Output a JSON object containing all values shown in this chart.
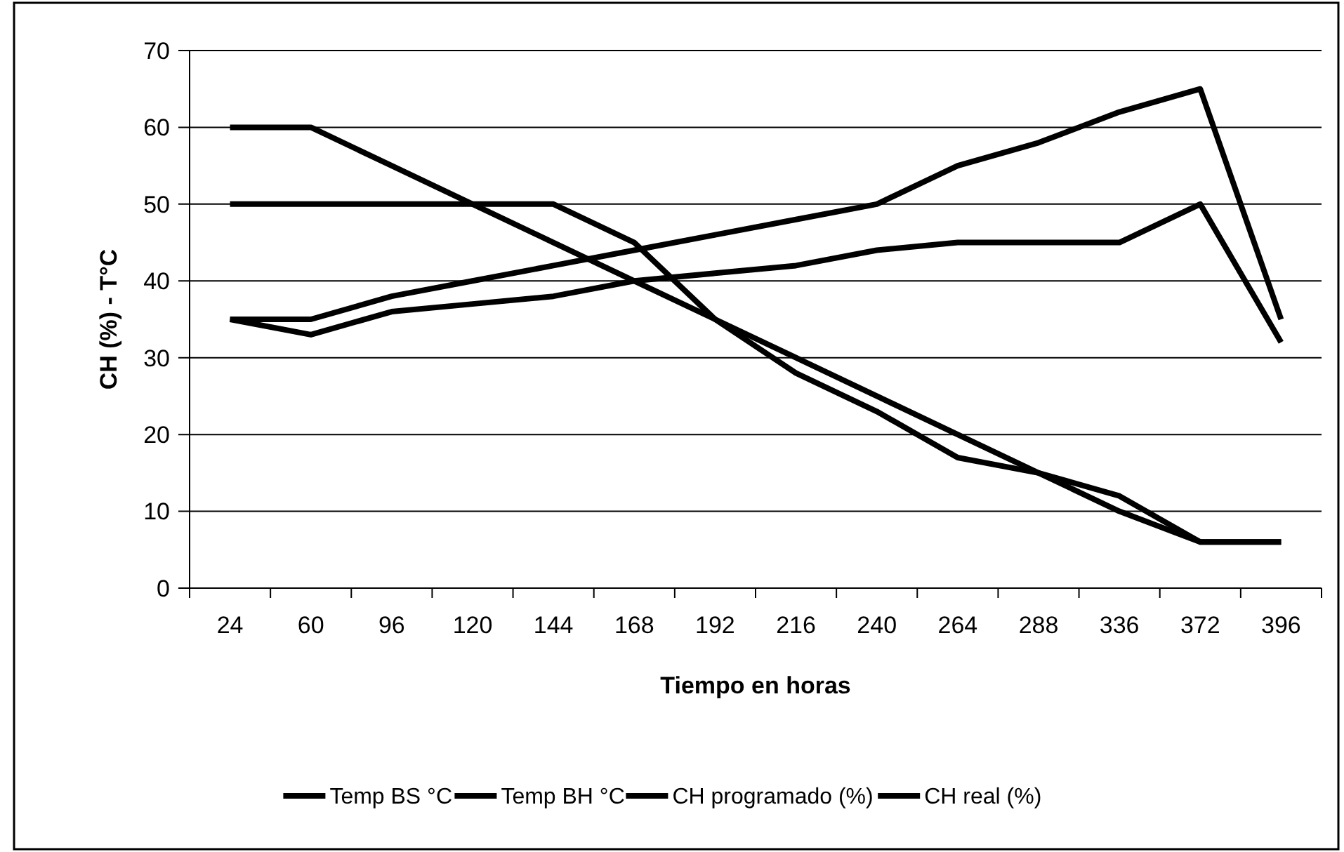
{
  "chart_data": {
    "type": "line",
    "xlabel": "Tiempo en horas",
    "ylabel": "CH (%) - T°C",
    "categories": [
      "24",
      "60",
      "96",
      "120",
      "144",
      "168",
      "192",
      "216",
      "240",
      "264",
      "288",
      "336",
      "372",
      "396"
    ],
    "series": [
      {
        "name": "Temp BS °C",
        "color": "#000000",
        "values": [
          60,
          60,
          55,
          50,
          45,
          40,
          35,
          30,
          25,
          20,
          15,
          10,
          6,
          6
        ]
      },
      {
        "name": "Temp BH °C",
        "color": "#000000",
        "values": [
          50,
          50,
          50,
          50,
          50,
          45,
          35,
          28,
          23,
          17,
          15,
          12,
          6,
          6
        ]
      },
      {
        "name": "CH programado (%)",
        "color": "#000000",
        "values": [
          35,
          35,
          38,
          40,
          42,
          44,
          46,
          48,
          50,
          55,
          58,
          62,
          65,
          35
        ]
      },
      {
        "name": "CH real (%)",
        "color": "#000000",
        "values": [
          35,
          33,
          36,
          37,
          38,
          40,
          41,
          42,
          44,
          45,
          45,
          45,
          50,
          32
        ]
      }
    ],
    "ylim": [
      0,
      70
    ],
    "yticks": [
      0,
      10,
      20,
      30,
      40,
      50,
      60,
      70
    ],
    "grid": "y",
    "legend": "bottom",
    "marker": "none",
    "line_style": "solid"
  }
}
